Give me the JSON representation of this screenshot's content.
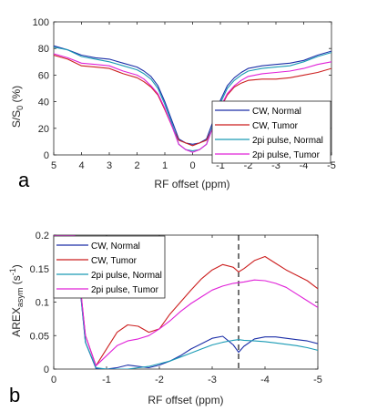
{
  "chart_data": [
    {
      "type": "line",
      "panel_label": "a",
      "xlabel": "RF offset (ppm)",
      "ylabel_parts": [
        "S/S",
        "0",
        " (%)"
      ],
      "xlim": [
        5,
        -5
      ],
      "ylim": [
        0,
        100
      ],
      "x_ticks": [
        5,
        4,
        3,
        2,
        1,
        0,
        -1,
        -2,
        -3,
        -4,
        -5
      ],
      "x_tick_labels": [
        "5",
        "4",
        "3",
        "2",
        "1",
        "0",
        "-1",
        "-2",
        "-3",
        "-4",
        "-5"
      ],
      "y_ticks": [
        0,
        20,
        40,
        60,
        80,
        100
      ],
      "y_tick_labels": [
        "0",
        "20",
        "40",
        "60",
        "80",
        "100"
      ],
      "grid": false,
      "legend_position": "bottom-right",
      "x": [
        5,
        4.5,
        4,
        3.5,
        3,
        2.5,
        2,
        1.75,
        1.5,
        1.25,
        1,
        0.75,
        0.5,
        0.25,
        0,
        -0.25,
        -0.5,
        -0.75,
        -1,
        -1.25,
        -1.5,
        -1.75,
        -2,
        -2.5,
        -3,
        -3.5,
        -4,
        -4.5,
        -5
      ],
      "series": [
        {
          "name": "CW, Normal",
          "color": "#1c2fa8",
          "values": [
            82,
            79,
            75,
            73,
            72,
            69,
            66,
            63,
            59,
            52,
            40,
            26,
            12,
            9,
            8,
            9,
            12,
            26,
            41,
            52,
            58,
            62,
            65,
            67,
            68,
            69,
            71,
            75,
            78
          ]
        },
        {
          "name": "CW, Tumor",
          "color": "#cc1f1f",
          "values": [
            75,
            72,
            67,
            66,
            65,
            61,
            58,
            55,
            51,
            45,
            34,
            22,
            11,
            9,
            7,
            9,
            11,
            22,
            35,
            45,
            51,
            54,
            56,
            57,
            57,
            58,
            60,
            62,
            65
          ]
        },
        {
          "name": "2pi pulse, Normal",
          "color": "#1a9bb5",
          "values": [
            81,
            79,
            74,
            72,
            70,
            67,
            64,
            61,
            57,
            50,
            38,
            24,
            8,
            4,
            3,
            4,
            8,
            24,
            39,
            50,
            56,
            60,
            63,
            65,
            66,
            67,
            70,
            74,
            77
          ]
        },
        {
          "name": "2pi pulse, Tumor",
          "color": "#e020d8",
          "values": [
            76,
            73,
            69,
            68,
            67,
            63,
            60,
            57,
            52,
            46,
            35,
            22,
            8,
            4,
            2,
            4,
            8,
            22,
            36,
            46,
            52,
            56,
            59,
            61,
            62,
            63,
            65,
            68,
            70
          ]
        }
      ]
    },
    {
      "type": "line",
      "panel_label": "b",
      "xlabel": "RF offset (ppm)",
      "ylabel_parts": [
        "AREX",
        "asym",
        " (s",
        "-1",
        ")"
      ],
      "xlim": [
        0,
        -5
      ],
      "ylim": [
        0,
        0.2
      ],
      "x_ticks": [
        0,
        -1,
        -2,
        -3,
        -4,
        -5
      ],
      "x_tick_labels": [
        "0",
        "-1",
        "-2",
        "-3",
        "-4",
        "-5"
      ],
      "y_ticks": [
        0,
        0.05,
        0.1,
        0.15,
        0.2
      ],
      "y_tick_labels": [
        "0",
        "0.05",
        "0.1",
        "0.15",
        "0.2"
      ],
      "grid": false,
      "legend_position": "top-left",
      "annotations": [
        {
          "type": "vertical-dashed-line",
          "x": -3.5,
          "color": "#000000"
        }
      ],
      "x": [
        0,
        -0.2,
        -0.4,
        -0.6,
        -0.8,
        -1,
        -1.2,
        -1.4,
        -1.6,
        -1.8,
        -2,
        -2.2,
        -2.4,
        -2.6,
        -2.8,
        -3,
        -3.2,
        -3.4,
        -3.5,
        -3.6,
        -3.8,
        -4,
        -4.2,
        -4.4,
        -4.6,
        -4.8,
        -5
      ],
      "series": [
        {
          "name": "CW, Normal",
          "color": "#1c2fa8",
          "values": [
            0.2,
            0.2,
            0.2,
            0.04,
            0.001,
            0.0,
            0.002,
            0.006,
            0.004,
            0.002,
            0.006,
            0.012,
            0.02,
            0.03,
            0.038,
            0.046,
            0.049,
            0.036,
            0.025,
            0.034,
            0.045,
            0.048,
            0.048,
            0.046,
            0.044,
            0.042,
            0.038
          ]
        },
        {
          "name": "CW, Tumor",
          "color": "#cc1f1f",
          "values": [
            0.2,
            0.2,
            0.2,
            0.05,
            0.005,
            0.03,
            0.055,
            0.066,
            0.064,
            0.055,
            0.06,
            0.082,
            0.1,
            0.118,
            0.135,
            0.148,
            0.156,
            0.152,
            0.145,
            0.15,
            0.162,
            0.168,
            0.158,
            0.148,
            0.14,
            0.132,
            0.12
          ]
        },
        {
          "name": "2pi pulse, Normal",
          "color": "#1a9bb5",
          "values": [
            0.2,
            0.2,
            0.2,
            0.04,
            0.002,
            0.0,
            0.0,
            0.0,
            0.002,
            0.004,
            0.008,
            0.012,
            0.018,
            0.024,
            0.03,
            0.036,
            0.04,
            0.043,
            0.044,
            0.043,
            0.042,
            0.041,
            0.039,
            0.037,
            0.035,
            0.032,
            0.028
          ]
        },
        {
          "name": "2pi pulse, Tumor",
          "color": "#e020d8",
          "values": [
            0.2,
            0.2,
            0.2,
            0.05,
            0.005,
            0.02,
            0.035,
            0.042,
            0.045,
            0.05,
            0.06,
            0.072,
            0.086,
            0.098,
            0.108,
            0.118,
            0.124,
            0.128,
            0.129,
            0.13,
            0.133,
            0.132,
            0.128,
            0.122,
            0.112,
            0.102,
            0.092
          ]
        }
      ]
    }
  ]
}
